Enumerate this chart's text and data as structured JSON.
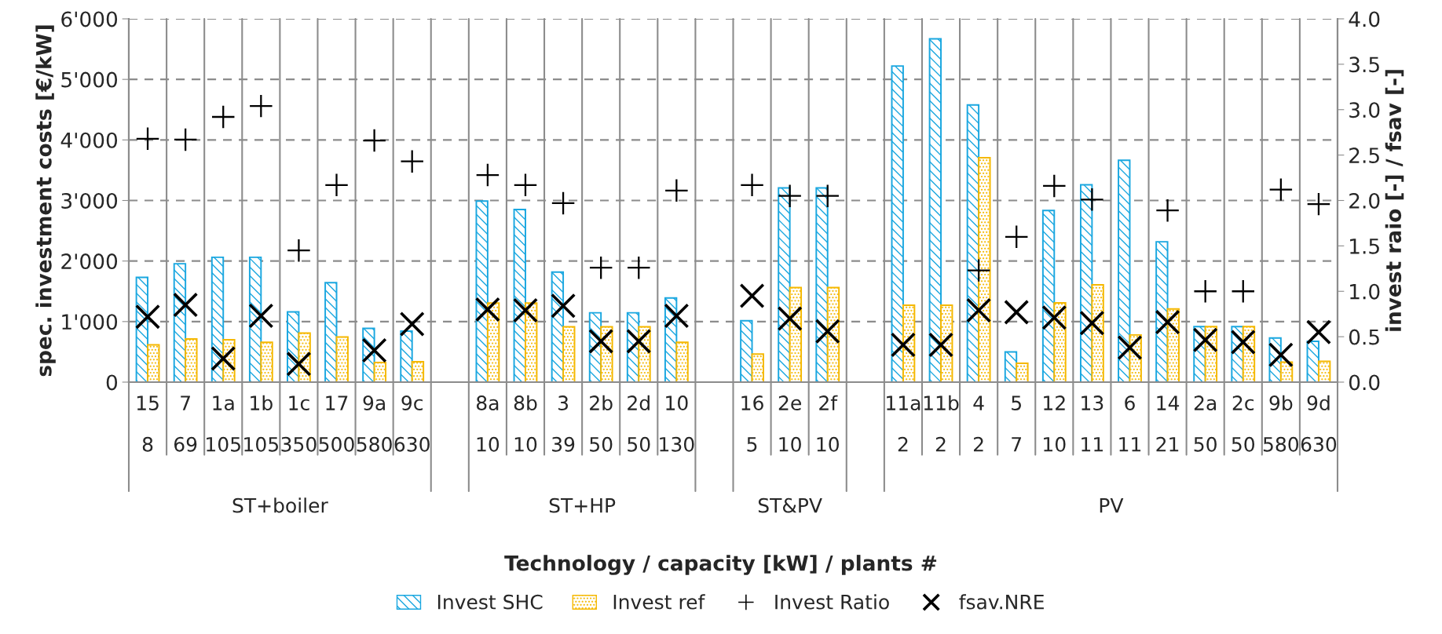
{
  "chart_data": {
    "type": "bar",
    "ylabel": "spec. investment costs [€/kW]",
    "y2label": "invest raio [-] / fsav [-]",
    "categories": [
      "15\n8",
      "7\n69",
      "1a\n105",
      "1b\n105",
      "1c\n350",
      "17\n500",
      "9a\n580",
      "9c\n630",
      null,
      "8a\n10",
      "8b\n10",
      "3\n39",
      "2b\n50",
      "2d\n50",
      "10\n130",
      null,
      "16\n5",
      "2e\n10",
      "2f\n10",
      null,
      "11a\n2",
      "11b\n2",
      "4\n2",
      "5\n7",
      "12\n10",
      "13\n11",
      "6\n11",
      "14\n21",
      "2a\n50",
      "2c\n50",
      "9b\n580",
      "9d\n630"
    ],
    "annotations": [
      "ST+boiler",
      "ST+HP",
      "ST&PV",
      "PV",
      "Technology / capacity [kW] / plants #"
    ],
    "series": [
      {
        "name": "Invest SHC",
        "color": "#1aa7e0",
        "values": [
          1730,
          1955,
          2062,
          2062,
          1160,
          1643,
          887,
          843,
          null,
          2990,
          2851,
          1817,
          1145,
          1145,
          1391,
          null,
          1015,
          3208,
          3208,
          null,
          5221,
          5670,
          4579,
          498,
          2835,
          3258,
          3663,
          2318,
          916,
          916,
          729,
          673
        ]
      },
      {
        "name": "Invest ref",
        "color": "#f5b800",
        "values": [
          615,
          713,
          700,
          658,
          809,
          744,
          324,
          337,
          null,
          1307,
          1307,
          913,
          913,
          913,
          658,
          null,
          464,
          1562,
          1562,
          null,
          1271,
          1271,
          3707,
          312,
          1308,
          1607,
          779,
          1209,
          916,
          916,
          330,
          343
        ]
      },
      {
        "name": "Invest Ratio",
        "type": "scatter",
        "axis": "y2",
        "color": "#000000",
        "values": [
          2.68,
          2.67,
          2.92,
          3.04,
          1.45,
          2.17,
          2.66,
          2.43,
          null,
          2.28,
          2.17,
          1.97,
          1.26,
          1.26,
          2.11,
          null,
          2.17,
          2.05,
          2.05,
          null,
          null,
          null,
          1.23,
          1.6,
          2.16,
          2.01,
          null,
          1.89,
          1.0,
          1.0,
          2.12,
          1.96
        ]
      },
      {
        "name": "fsav.NRE",
        "type": "scatter",
        "axis": "y2",
        "marker": "cross",
        "color": "#000000",
        "values": [
          0.72,
          0.85,
          0.26,
          0.73,
          0.2,
          null,
          0.35,
          0.64,
          null,
          0.8,
          0.79,
          0.84,
          0.45,
          0.45,
          0.73,
          null,
          0.95,
          0.7,
          0.56,
          null,
          0.41,
          0.41,
          0.79,
          0.77,
          0.71,
          0.65,
          0.38,
          0.66,
          0.465,
          0.44,
          0.3,
          0.55
        ]
      }
    ],
    "ylim": [
      0,
      6000
    ],
    "yticks": [
      0,
      {
        "value": 1000,
        "label": "1'000"
      },
      {
        "value": 2000,
        "label": "2'000"
      },
      {
        "value": 3000,
        "label": "3'000"
      },
      {
        "value": 4000,
        "label": "4'000"
      },
      {
        "value": 5000,
        "label": "5'000"
      },
      {
        "value": 6000,
        "label": "6'000"
      }
    ],
    "y2lim": [
      0,
      4
    ],
    "y2ticks": [
      {
        "value": 0,
        "label": "0.0"
      },
      {
        "value": 0.5,
        "label": "0.5"
      },
      {
        "value": 1,
        "label": "1.0"
      },
      {
        "value": 1.5,
        "label": "1.5"
      },
      {
        "value": 2,
        "label": "2.0"
      },
      {
        "value": 2.5,
        "label": "2.5"
      },
      {
        "value": 3,
        "label": "3.0"
      },
      {
        "value": 3.5,
        "label": "3.5"
      },
      {
        "value": 4,
        "label": "4.0"
      }
    ],
    "grid": true,
    "legend": "bottom"
  }
}
